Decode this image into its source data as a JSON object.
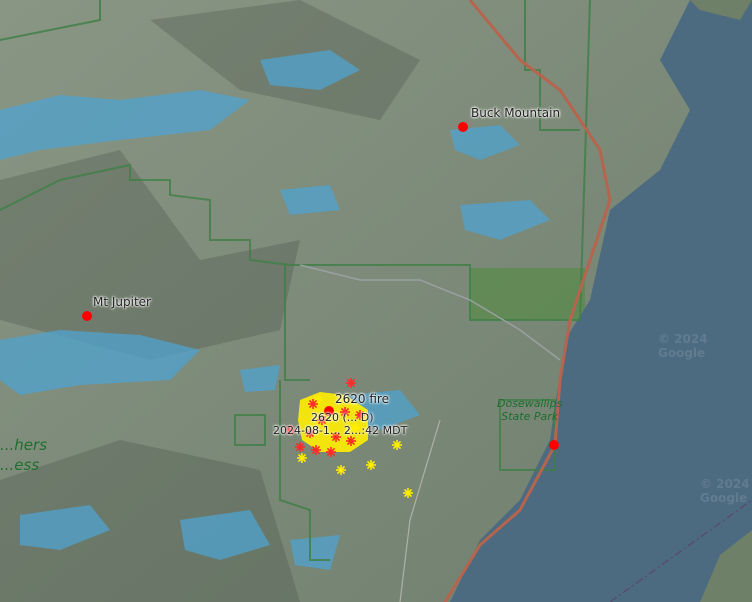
{
  "map": {
    "type": "satellite-terrain",
    "colors": {
      "land": "#7d8a79",
      "water": "#4c6a80",
      "snow_patch": "#4fa3cf",
      "boundary": "#3f7f46",
      "road": "#b5654d",
      "marker": "#ff0000",
      "fire_red": "#ff2a2a",
      "fire_yellow": "#ffee00"
    },
    "places": [
      {
        "name": "Buck Mountain",
        "icon": "red-dot-icon"
      },
      {
        "name": "Mt Jupiter",
        "icon": "red-dot-icon"
      },
      {
        "name": "2620 fire",
        "icon": "red-dot-icon"
      }
    ],
    "fire_labels": {
      "name_partial": "2620 (... D)",
      "timestamp_partial": "2024-08-1... 2...:42 MDT"
    },
    "parks": [
      {
        "name_line1": "Dosewallips",
        "name_line2": "State Park"
      }
    ],
    "wilderness": {
      "line1": "...hers",
      "line2": "...ess"
    },
    "attribution": "© 2024 Google"
  }
}
